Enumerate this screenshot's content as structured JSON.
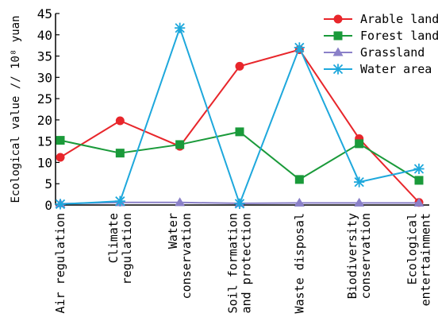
{
  "chart_data": {
    "type": "line",
    "categories": [
      [
        "Air regulation"
      ],
      [
        "Climate",
        "regulation"
      ],
      [
        "Water",
        "conservation"
      ],
      [
        "Soil formation",
        "and protection"
      ],
      [
        "Waste disposal"
      ],
      [
        "Biodiversity",
        "conservation"
      ],
      [
        "Ecological",
        "entertainment"
      ]
    ],
    "ylabel": "Ecological value // 10⁸ yuan",
    "ylim": [
      0,
      45
    ],
    "yticks": [
      0,
      5,
      10,
      15,
      20,
      25,
      30,
      35,
      40,
      45
    ],
    "grid": false,
    "legend_position": "top-right",
    "series": [
      {
        "name": "Arable land",
        "marker": "circle",
        "color": "#e8262b",
        "values": [
          11.2,
          19.8,
          13.8,
          32.6,
          36.5,
          15.6,
          0.6
        ]
      },
      {
        "name": "Forest land",
        "marker": "square",
        "color": "#1a9a3a",
        "values": [
          15.2,
          12.2,
          14.2,
          17.2,
          6.0,
          14.4,
          5.8
        ]
      },
      {
        "name": "Grassland",
        "marker": "triangle",
        "color": "#8a80c8",
        "values": [
          0.3,
          0.6,
          0.6,
          0.4,
          0.5,
          0.5,
          0.5
        ]
      },
      {
        "name": "Water area",
        "marker": "star",
        "color": "#1ea8dc",
        "values": [
          0.2,
          0.9,
          41.6,
          0.3,
          37.0,
          5.4,
          8.5
        ]
      }
    ]
  }
}
